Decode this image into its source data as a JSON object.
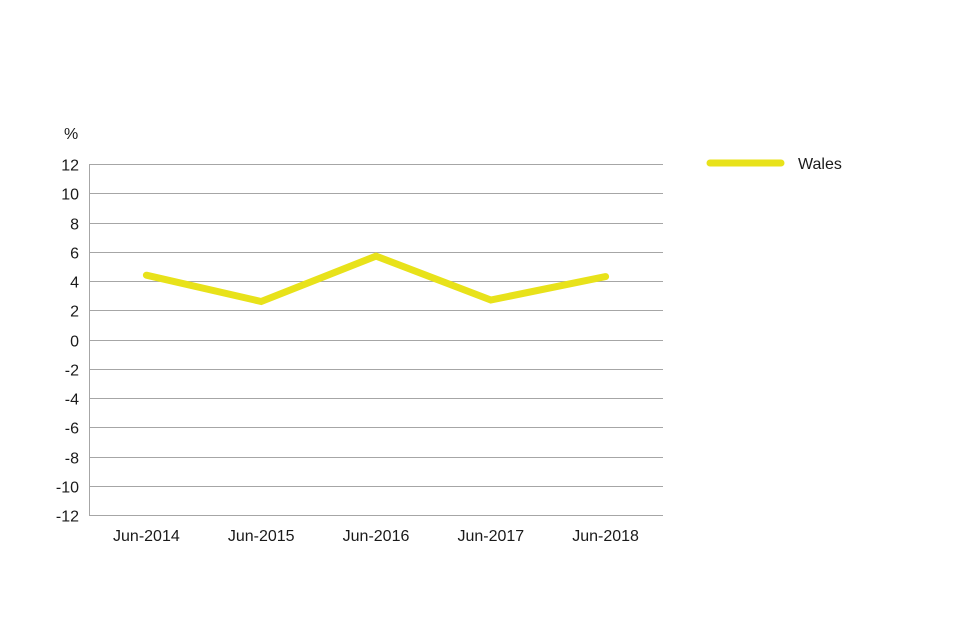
{
  "chart_data": {
    "type": "line",
    "title": "",
    "ylabel": "%",
    "xlabel": "",
    "categories": [
      "Jun-2014",
      "Jun-2015",
      "Jun-2016",
      "Jun-2017",
      "Jun-2018"
    ],
    "series": [
      {
        "name": "Wales",
        "color": "#e8e21a",
        "values": [
          4.4,
          2.6,
          5.7,
          2.7,
          4.3
        ]
      }
    ],
    "ylim": [
      -12,
      12
    ],
    "yticks": [
      12,
      10,
      8,
      6,
      4,
      2,
      0,
      -2,
      -4,
      -6,
      -8,
      -10,
      -12
    ],
    "grid": true,
    "legend_position": "top-right"
  }
}
